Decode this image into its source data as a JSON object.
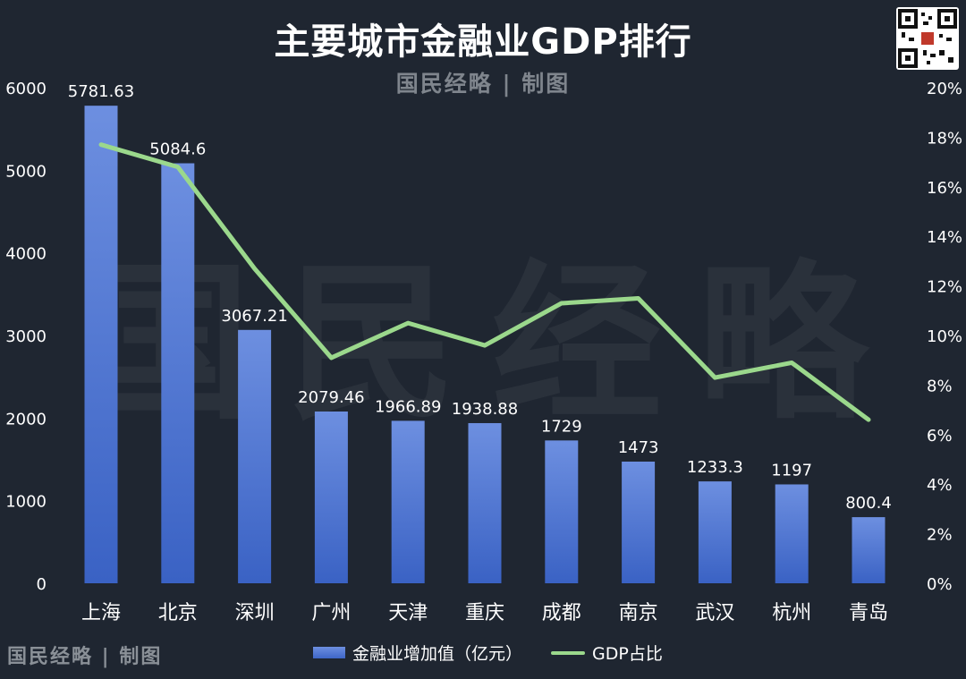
{
  "title": "主要城市金融业GDP排行",
  "credit": "国民经略 | 制图",
  "watermark": "国民经略",
  "colors": {
    "background": "#1f2631",
    "bar": "#4a72d6",
    "line": "#9bd88c"
  },
  "chart_data": {
    "type": "bar+line",
    "categories": [
      "上海",
      "北京",
      "深圳",
      "广州",
      "天津",
      "重庆",
      "成都",
      "南京",
      "武汉",
      "杭州",
      "青岛"
    ],
    "series": [
      {
        "name": "金融业增加值（亿元）",
        "type": "bar",
        "axis": "left",
        "values": [
          5781.63,
          5084.6,
          3067.21,
          2079.46,
          1966.89,
          1938.88,
          1729,
          1473,
          1233.3,
          1197,
          800.4
        ],
        "labels": [
          "5781.63",
          "5084.6",
          "3067.21",
          "2079.46",
          "1966.89",
          "1938.88",
          "1729",
          "1473",
          "1233.3",
          "1197",
          "800.4"
        ]
      },
      {
        "name": "GDP占比",
        "type": "line",
        "axis": "right",
        "values": [
          17.7,
          16.8,
          12.7,
          9.1,
          10.5,
          9.6,
          11.3,
          11.5,
          8.3,
          8.9,
          6.6
        ]
      }
    ],
    "y_left": {
      "min": 0,
      "max": 6000,
      "ticks": [
        "0",
        "1000",
        "2000",
        "3000",
        "4000",
        "5000",
        "6000"
      ]
    },
    "y_right": {
      "min": 0,
      "max": 20,
      "ticks": [
        "0%",
        "2%",
        "4%",
        "6%",
        "8%",
        "10%",
        "12%",
        "14%",
        "16%",
        "18%",
        "20%"
      ]
    },
    "grid": false,
    "legend_position": "bottom"
  }
}
